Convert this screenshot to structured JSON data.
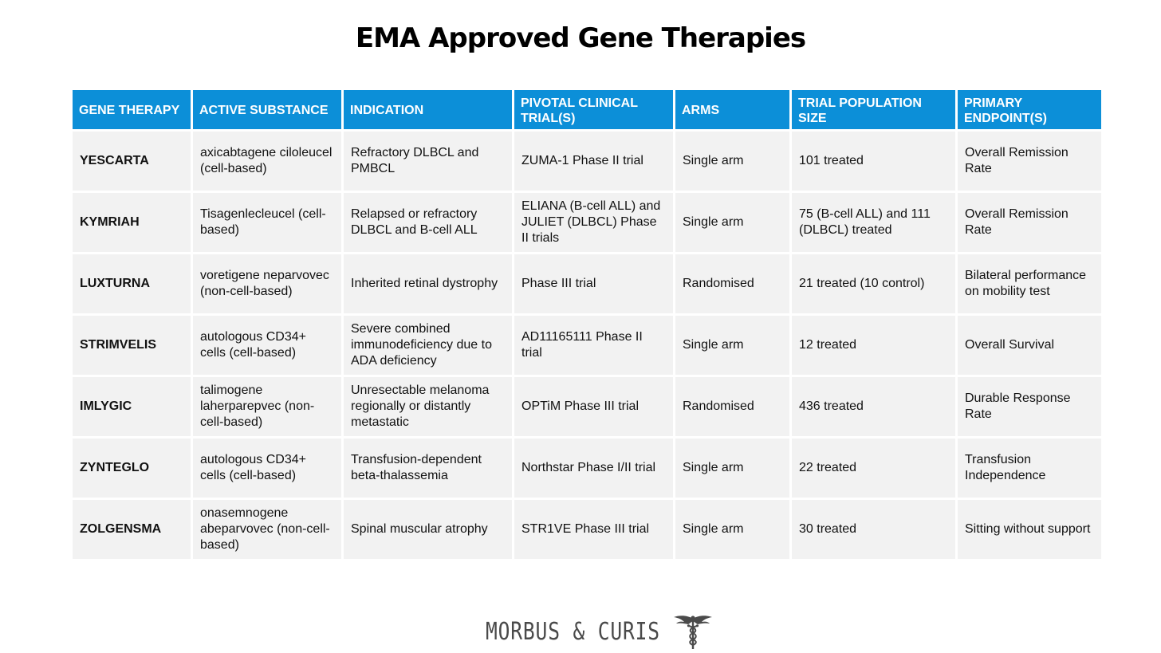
{
  "title": "EMA Approved Gene Therapies",
  "colors": {
    "header_bg": "#0c8fd8",
    "header_text": "#ffffff",
    "cell_bg": "#f2f2f2",
    "brand_text": "#4a4a4a"
  },
  "table": {
    "headers": [
      "GENE THERAPY",
      "ACTIVE SUBSTANCE",
      "INDICATION",
      "PIVOTAL CLINICAL TRIAL(S)",
      "ARMS",
      "TRIAL POPULATION SIZE",
      "PRIMARY ENDPOINT(S)"
    ],
    "rows": [
      [
        "YESCARTA",
        "axicabtagene ciloleucel (cell-based)",
        "Refractory DLBCL and PMBCL",
        "ZUMA-1 Phase II trial",
        "Single arm",
        "101 treated",
        "Overall Remission Rate"
      ],
      [
        "KYMRIAH",
        "Tisagenlecleucel (cell-based)",
        "Relapsed or refractory DLBCL and B-cell ALL",
        "ELIANA (B-cell ALL) and JULIET (DLBCL) Phase II trials",
        "Single arm",
        "75 (B-cell ALL) and 111 (DLBCL) treated",
        "Overall Remission Rate"
      ],
      [
        "LUXTURNA",
        "voretigene neparvovec (non-cell-based)",
        "Inherited retinal dystrophy",
        "Phase III trial",
        "Randomised",
        "21 treated (10 control)",
        "Bilateral performance on mobility test"
      ],
      [
        "STRIMVELIS",
        "autologous CD34+ cells (cell-based)",
        "Severe combined immunodeficiency due to ADA deficiency",
        "AD11165111 Phase II trial",
        "Single arm",
        "12 treated",
        "Overall Survival"
      ],
      [
        "IMLYGIC",
        "talimogene laherparepvec (non-cell-based)",
        "Unresectable melanoma regionally or distantly metastatic",
        "OPTiM Phase III trial",
        "Randomised",
        "436 treated",
        "Durable Response Rate"
      ],
      [
        "ZYNTEGLO",
        "autologous CD34+ cells (cell-based)",
        "Transfusion-dependent beta-thalassemia",
        "Northstar Phase I/II trial",
        "Single arm",
        "22 treated",
        "Transfusion Independence"
      ],
      [
        "ZOLGENSMA",
        "onasemnogene abeparvovec (non-cell-based)",
        "Spinal muscular atrophy",
        "STR1VE Phase III trial",
        "Single arm",
        "30 treated",
        "Sitting without support"
      ]
    ]
  },
  "footer": {
    "brand": "MORBUS & CURIS",
    "logo_icon": "caduceus-icon"
  }
}
